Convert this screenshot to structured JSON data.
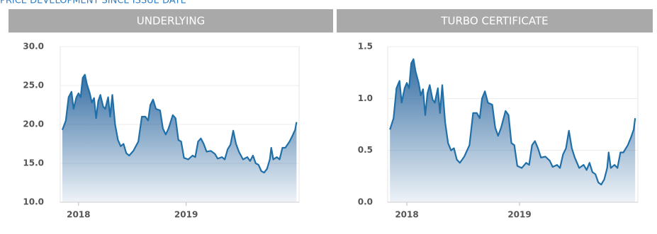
{
  "header": "PRICE DEVELOPMENT SINCE ISSUE DATE",
  "chart_data": [
    {
      "type": "area",
      "title": "UNDERLYING",
      "color": "#1f6fa8",
      "x": [
        2017.85,
        2017.882,
        2017.908,
        2017.935,
        2017.954,
        2017.98,
        2018.0,
        2018.02,
        2018.039,
        2018.059,
        2018.078,
        2018.105,
        2018.124,
        2018.144,
        2018.163,
        2018.183,
        2018.203,
        2018.229,
        2018.248,
        2018.275,
        2018.294,
        2018.314,
        2018.34,
        2018.366,
        2018.392,
        2018.418,
        2018.444,
        2018.471,
        2018.51,
        2018.556,
        2018.588,
        2018.621,
        2018.647,
        2018.667,
        2018.693,
        2018.719,
        2018.758,
        2018.784,
        2018.81,
        2018.837,
        2018.876,
        2018.902,
        2018.928,
        2018.954,
        2018.98,
        2019.02,
        2019.059,
        2019.085,
        2019.111,
        2019.137,
        2019.163,
        2019.19,
        2019.229,
        2019.268,
        2019.294,
        2019.333,
        2019.359,
        2019.386,
        2019.412,
        2019.438,
        2019.464,
        2019.49,
        2019.529,
        2019.569,
        2019.595,
        2019.621,
        2019.647,
        2019.673,
        2019.699,
        2019.725,
        2019.752,
        2019.778,
        2019.791,
        2019.81,
        2019.843,
        2019.869,
        2019.895,
        2019.922,
        2019.961,
        2019.987,
        2020.013,
        2020.026
      ],
      "values": [
        19.3,
        20.5,
        23.5,
        24.2,
        22,
        23.5,
        24,
        23.5,
        26,
        26.4,
        25.2,
        24,
        22.8,
        23.4,
        20.8,
        23,
        23.8,
        22.3,
        22,
        23.5,
        21,
        23.8,
        20,
        18,
        17.2,
        17.5,
        16.3,
        16,
        16.6,
        17.8,
        21,
        21,
        20.5,
        22.5,
        23.2,
        22,
        21.8,
        19.5,
        18.7,
        19.5,
        21.2,
        20.8,
        18,
        17.8,
        15.7,
        15.5,
        16,
        15.8,
        17.8,
        18.2,
        17.5,
        16.5,
        16.6,
        16.2,
        15.6,
        15.8,
        15.5,
        16.8,
        17.4,
        19.2,
        17.5,
        16.5,
        15.5,
        15.8,
        15.3,
        16,
        15,
        14.8,
        14,
        13.8,
        14.3,
        15.5,
        17,
        15.5,
        15.8,
        15.5,
        17,
        17,
        17.8,
        18.5,
        19.3,
        20.3
      ],
      "xlim": [
        2017.83,
        2020.05
      ],
      "xticks": [
        2018,
        2019
      ],
      "ylim": [
        10,
        30
      ],
      "yticks": [
        {
          "value": 10,
          "label": "10.0"
        },
        {
          "value": 15,
          "label": "15.0"
        },
        {
          "value": 20,
          "label": "20.0"
        },
        {
          "value": 25,
          "label": "25.0"
        },
        {
          "value": 30,
          "label": "30.0"
        }
      ],
      "grid": true
    },
    {
      "type": "area",
      "title": "TURBO CERTIFICATE",
      "color": "#1f6fa8",
      "x": [
        2017.85,
        2017.882,
        2017.908,
        2017.935,
        2017.954,
        2017.98,
        2018.0,
        2018.02,
        2018.039,
        2018.059,
        2018.078,
        2018.105,
        2018.124,
        2018.144,
        2018.163,
        2018.183,
        2018.203,
        2018.229,
        2018.248,
        2018.275,
        2018.294,
        2018.314,
        2018.34,
        2018.366,
        2018.392,
        2018.418,
        2018.444,
        2018.471,
        2018.51,
        2018.556,
        2018.588,
        2018.621,
        2018.647,
        2018.667,
        2018.693,
        2018.719,
        2018.758,
        2018.784,
        2018.81,
        2018.837,
        2018.876,
        2018.902,
        2018.928,
        2018.954,
        2018.98,
        2019.02,
        2019.059,
        2019.085,
        2019.111,
        2019.137,
        2019.163,
        2019.19,
        2019.229,
        2019.268,
        2019.294,
        2019.333,
        2019.359,
        2019.386,
        2019.412,
        2019.438,
        2019.464,
        2019.49,
        2019.529,
        2019.569,
        2019.595,
        2019.621,
        2019.647,
        2019.673,
        2019.699,
        2019.725,
        2019.752,
        2019.778,
        2019.791,
        2019.81,
        2019.843,
        2019.869,
        2019.895,
        2019.922,
        2019.961,
        2019.987,
        2020.013,
        2020.026
      ],
      "values": [
        0.7,
        0.81,
        1.1,
        1.17,
        0.96,
        1.1,
        1.15,
        1.1,
        1.34,
        1.38,
        1.26,
        1.15,
        1.03,
        1.09,
        0.84,
        1.05,
        1.13,
        0.99,
        0.96,
        1.1,
        0.86,
        1.13,
        0.77,
        0.57,
        0.5,
        0.52,
        0.41,
        0.38,
        0.44,
        0.55,
        0.86,
        0.86,
        0.81,
        1.0,
        1.07,
        0.96,
        0.94,
        0.72,
        0.64,
        0.72,
        0.88,
        0.84,
        0.57,
        0.55,
        0.35,
        0.33,
        0.38,
        0.36,
        0.55,
        0.59,
        0.52,
        0.43,
        0.44,
        0.4,
        0.34,
        0.36,
        0.33,
        0.46,
        0.52,
        0.69,
        0.52,
        0.43,
        0.33,
        0.36,
        0.31,
        0.38,
        0.29,
        0.27,
        0.19,
        0.17,
        0.22,
        0.33,
        0.48,
        0.33,
        0.36,
        0.33,
        0.48,
        0.48,
        0.55,
        0.62,
        0.7,
        0.81
      ],
      "xlim": [
        2017.83,
        2020.05
      ],
      "xticks": [
        2018,
        2019
      ],
      "ylim": [
        0,
        1.5
      ],
      "yticks": [
        {
          "value": 0,
          "label": "0.0"
        },
        0.5,
        {
          "value": 1,
          "label": "1.0"
        },
        1.5
      ],
      "grid": true
    }
  ]
}
